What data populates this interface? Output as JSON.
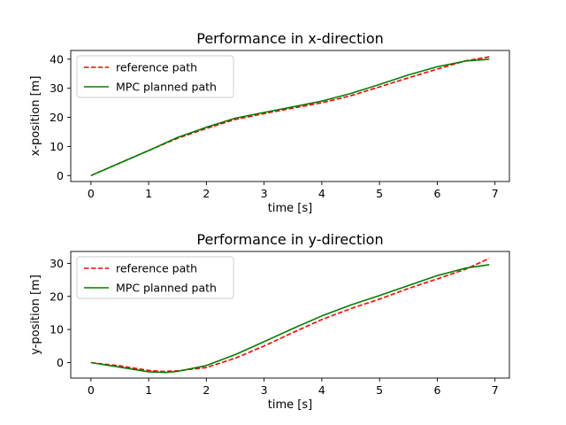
{
  "chart_data": [
    {
      "type": "line",
      "title": "Performance in x-direction",
      "xlabel": "time [s]",
      "ylabel": "x-position [m]",
      "xlim": [
        -0.35,
        7.25
      ],
      "ylim": [
        -2.05,
        43
      ],
      "xticks": [
        0,
        1,
        2,
        3,
        4,
        5,
        6,
        7
      ],
      "yticks": [
        0,
        10,
        20,
        30,
        40
      ],
      "grid": false,
      "legend_position": "upper-left",
      "series": [
        {
          "name": "reference path",
          "color": "#ff0000",
          "dash": "dashed",
          "x": [
            0,
            0.5,
            1,
            1.5,
            2,
            2.5,
            3,
            3.5,
            4,
            4.5,
            5,
            5.5,
            6,
            6.5,
            6.9
          ],
          "y": [
            0,
            4.3,
            8.6,
            12.8,
            16.2,
            19.3,
            21.3,
            23.2,
            25.0,
            27.4,
            30.5,
            33.6,
            36.6,
            39.5,
            40.8
          ]
        },
        {
          "name": "MPC planned path",
          "color": "#008000",
          "dash": "solid",
          "x": [
            0,
            0.5,
            1,
            1.5,
            2,
            2.5,
            3,
            3.5,
            4,
            4.5,
            5,
            5.5,
            6,
            6.5,
            6.9
          ],
          "y": [
            0,
            4.3,
            8.6,
            13.1,
            16.6,
            19.7,
            21.7,
            23.6,
            25.6,
            28.2,
            31.3,
            34.6,
            37.4,
            39.4,
            40.0
          ]
        }
      ]
    },
    {
      "type": "line",
      "title": "Performance in y-direction",
      "xlabel": "time [s]",
      "ylabel": "y-position [m]",
      "xlim": [
        -0.35,
        7.25
      ],
      "ylim": [
        -4.7,
        33.6
      ],
      "xticks": [
        0,
        1,
        2,
        3,
        4,
        5,
        6,
        7
      ],
      "yticks": [
        0,
        10,
        20,
        30
      ],
      "grid": false,
      "legend_position": "upper-left",
      "series": [
        {
          "name": "reference path",
          "color": "#ff0000",
          "dash": "dashed",
          "x": [
            0,
            0.5,
            1,
            1.25,
            1.5,
            2,
            2.5,
            3,
            3.5,
            4,
            4.5,
            5,
            5.5,
            6,
            6.5,
            6.9
          ],
          "y": [
            0,
            -1.0,
            -2.4,
            -2.7,
            -2.5,
            -1.5,
            1.3,
            5.0,
            9.1,
            13.0,
            16.3,
            19.2,
            22.4,
            25.3,
            28.3,
            31.5
          ]
        },
        {
          "name": "MPC planned path",
          "color": "#008000",
          "dash": "solid",
          "x": [
            0,
            0.5,
            1,
            1.3,
            1.5,
            2,
            2.5,
            3,
            3.5,
            4,
            4.5,
            5,
            5.5,
            6,
            6.5,
            6.9
          ],
          "y": [
            0,
            -1.4,
            -2.8,
            -3.0,
            -2.7,
            -0.9,
            2.4,
            6.3,
            10.3,
            14.1,
            17.4,
            20.3,
            23.3,
            26.3,
            28.6,
            29.6
          ]
        }
      ]
    }
  ]
}
